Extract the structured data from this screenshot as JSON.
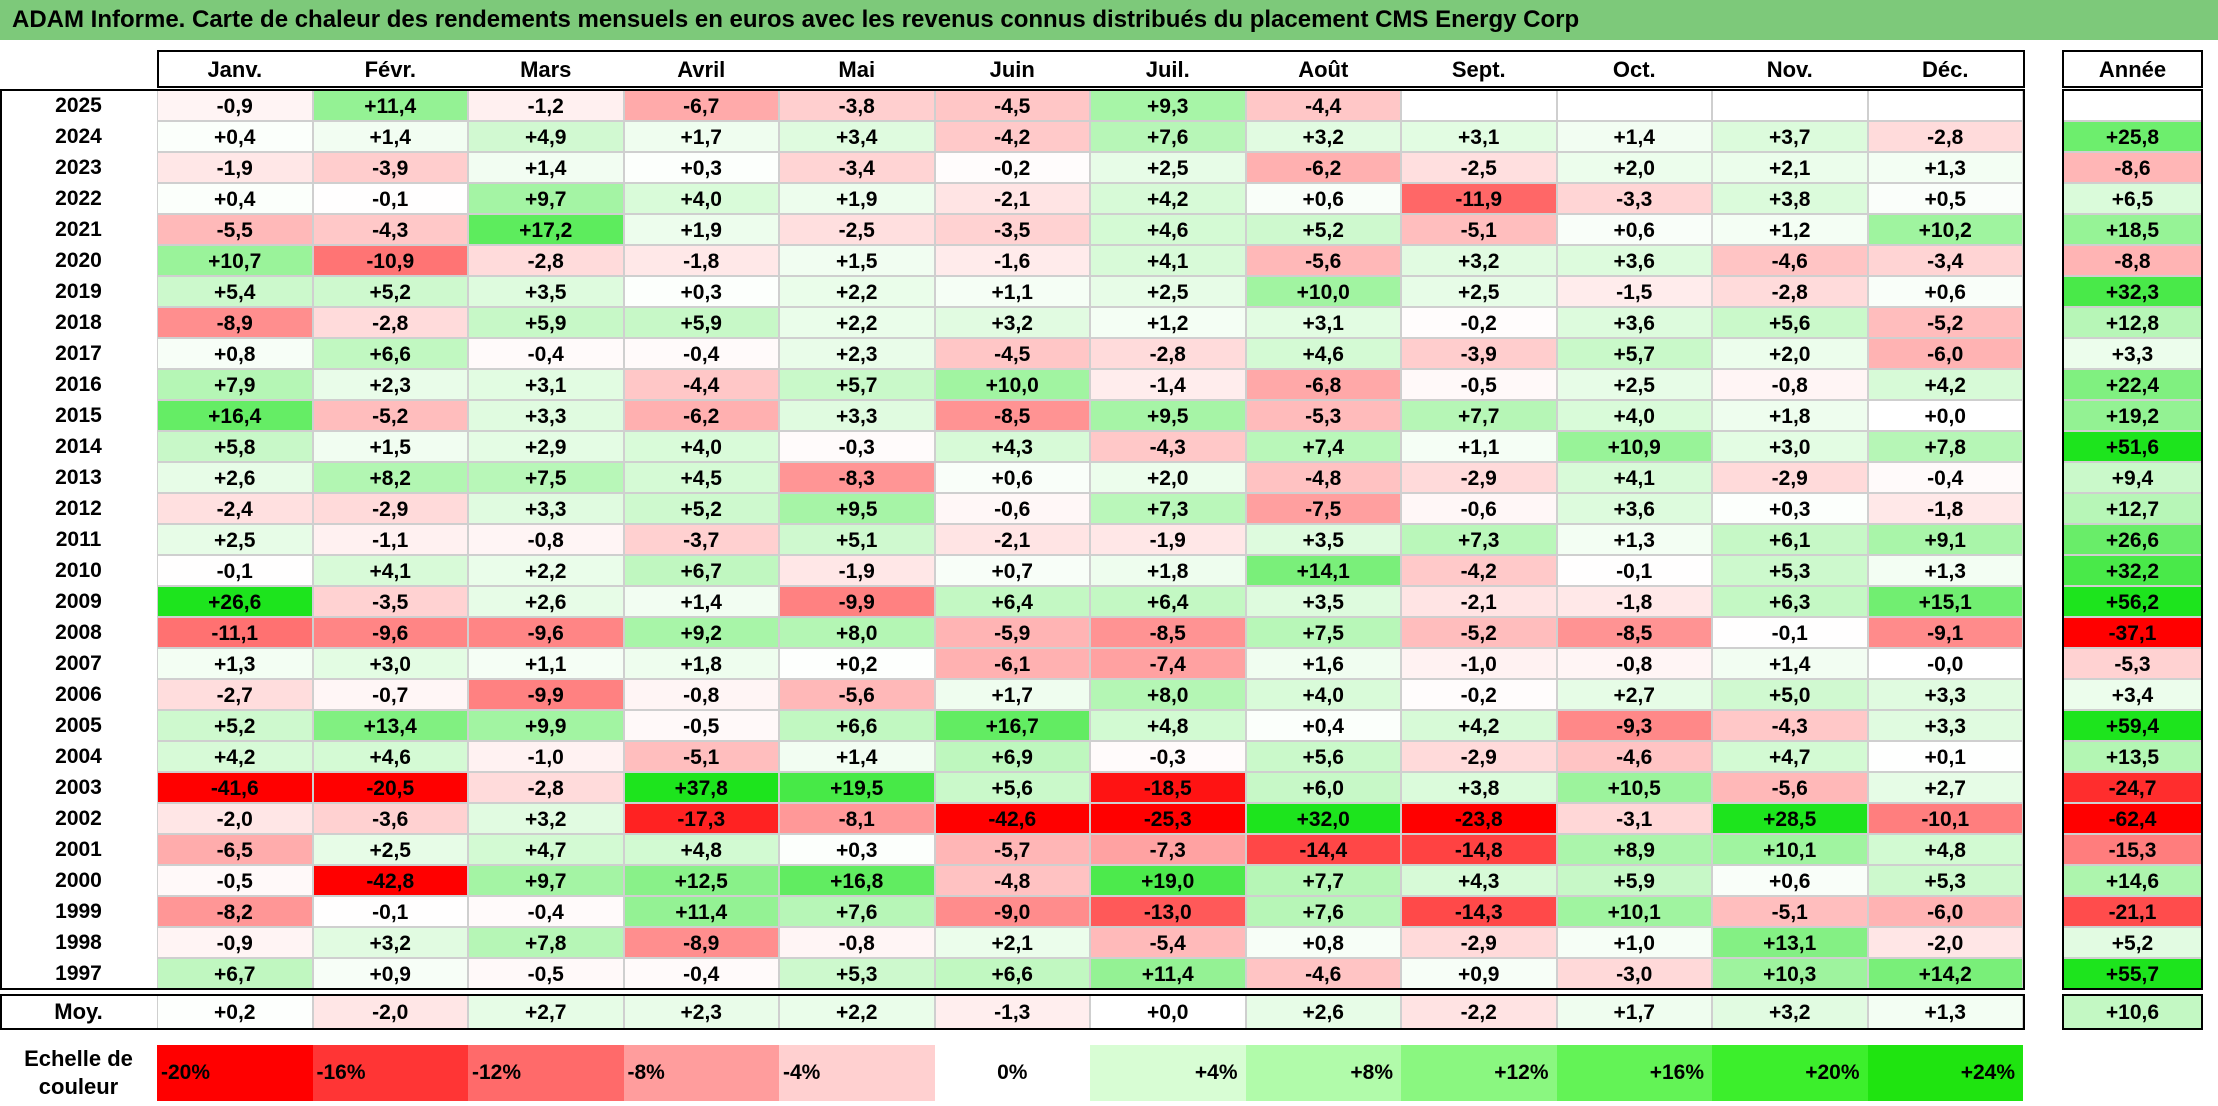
{
  "title": "ADAM Informe. Carte de chaleur des rendements mensuels en euros avec les revenus connus distribués du placement CMS Energy Corp",
  "chart_data": {
    "type": "heatmap",
    "title": "ADAM Informe. Carte de chaleur des rendements mensuels en euros avec les revenus connus distribués du placement CMS Energy Corp",
    "columns": [
      "Janv.",
      "Févr.",
      "Mars",
      "Avril",
      "Mai",
      "Juin",
      "Juil.",
      "Août",
      "Sept.",
      "Oct.",
      "Nov.",
      "Déc."
    ],
    "year_column": "Année",
    "rows": [
      {
        "year": "2025",
        "values": [
          "-0,9",
          "+11,4",
          "-1,2",
          "-6,7",
          "-3,8",
          "-4,5",
          "+9,3",
          "-4,4",
          "",
          "",
          "",
          ""
        ],
        "annual": ""
      },
      {
        "year": "2024",
        "values": [
          "+0,4",
          "+1,4",
          "+4,9",
          "+1,7",
          "+3,4",
          "-4,2",
          "+7,6",
          "+3,2",
          "+3,1",
          "+1,4",
          "+3,7",
          "-2,8"
        ],
        "annual": "+25,8"
      },
      {
        "year": "2023",
        "values": [
          "-1,9",
          "-3,9",
          "+1,4",
          "+0,3",
          "-3,4",
          "-0,2",
          "+2,5",
          "-6,2",
          "-2,5",
          "+2,0",
          "+2,1",
          "+1,3"
        ],
        "annual": "-8,6"
      },
      {
        "year": "2022",
        "values": [
          "+0,4",
          "-0,1",
          "+9,7",
          "+4,0",
          "+1,9",
          "-2,1",
          "+4,2",
          "+0,6",
          "-11,9",
          "-3,3",
          "+3,8",
          "+0,5"
        ],
        "annual": "+6,5"
      },
      {
        "year": "2021",
        "values": [
          "-5,5",
          "-4,3",
          "+17,2",
          "+1,9",
          "-2,5",
          "-3,5",
          "+4,6",
          "+5,2",
          "-5,1",
          "+0,6",
          "+1,2",
          "+10,2"
        ],
        "annual": "+18,5"
      },
      {
        "year": "2020",
        "values": [
          "+10,7",
          "-10,9",
          "-2,8",
          "-1,8",
          "+1,5",
          "-1,6",
          "+4,1",
          "-5,6",
          "+3,2",
          "+3,6",
          "-4,6",
          "-3,4"
        ],
        "annual": "-8,8"
      },
      {
        "year": "2019",
        "values": [
          "+5,4",
          "+5,2",
          "+3,5",
          "+0,3",
          "+2,2",
          "+1,1",
          "+2,5",
          "+10,0",
          "+2,5",
          "-1,5",
          "-2,8",
          "+0,6"
        ],
        "annual": "+32,3"
      },
      {
        "year": "2018",
        "values": [
          "-8,9",
          "-2,8",
          "+5,9",
          "+5,9",
          "+2,2",
          "+3,2",
          "+1,2",
          "+3,1",
          "-0,2",
          "+3,6",
          "+5,6",
          "-5,2"
        ],
        "annual": "+12,8"
      },
      {
        "year": "2017",
        "values": [
          "+0,8",
          "+6,6",
          "-0,4",
          "-0,4",
          "+2,3",
          "-4,5",
          "-2,8",
          "+4,6",
          "-3,9",
          "+5,7",
          "+2,0",
          "-6,0"
        ],
        "annual": "+3,3"
      },
      {
        "year": "2016",
        "values": [
          "+7,9",
          "+2,3",
          "+3,1",
          "-4,4",
          "+5,7",
          "+10,0",
          "-1,4",
          "-6,8",
          "-0,5",
          "+2,5",
          "-0,8",
          "+4,2"
        ],
        "annual": "+22,4"
      },
      {
        "year": "2015",
        "values": [
          "+16,4",
          "-5,2",
          "+3,3",
          "-6,2",
          "+3,3",
          "-8,5",
          "+9,5",
          "-5,3",
          "+7,7",
          "+4,0",
          "+1,8",
          "+0,0"
        ],
        "annual": "+19,2"
      },
      {
        "year": "2014",
        "values": [
          "+5,8",
          "+1,5",
          "+2,9",
          "+4,0",
          "-0,3",
          "+4,3",
          "-4,3",
          "+7,4",
          "+1,1",
          "+10,9",
          "+3,0",
          "+7,8"
        ],
        "annual": "+51,6"
      },
      {
        "year": "2013",
        "values": [
          "+2,6",
          "+8,2",
          "+7,5",
          "+4,5",
          "-8,3",
          "+0,6",
          "+2,0",
          "-4,8",
          "-2,9",
          "+4,1",
          "-2,9",
          "-0,4"
        ],
        "annual": "+9,4"
      },
      {
        "year": "2012",
        "values": [
          "-2,4",
          "-2,9",
          "+3,3",
          "+5,2",
          "+9,5",
          "-0,6",
          "+7,3",
          "-7,5",
          "-0,6",
          "+3,6",
          "+0,3",
          "-1,8"
        ],
        "annual": "+12,7"
      },
      {
        "year": "2011",
        "values": [
          "+2,5",
          "-1,1",
          "-0,8",
          "-3,7",
          "+5,1",
          "-2,1",
          "-1,9",
          "+3,5",
          "+7,3",
          "+1,3",
          "+6,1",
          "+9,1"
        ],
        "annual": "+26,6"
      },
      {
        "year": "2010",
        "values": [
          "-0,1",
          "+4,1",
          "+2,2",
          "+6,7",
          "-1,9",
          "+0,7",
          "+1,8",
          "+14,1",
          "-4,2",
          "-0,1",
          "+5,3",
          "+1,3"
        ],
        "annual": "+32,2"
      },
      {
        "year": "2009",
        "values": [
          "+26,6",
          "-3,5",
          "+2,6",
          "+1,4",
          "-9,9",
          "+6,4",
          "+6,4",
          "+3,5",
          "-2,1",
          "-1,8",
          "+6,3",
          "+15,1"
        ],
        "annual": "+56,2"
      },
      {
        "year": "2008",
        "values": [
          "-11,1",
          "-9,6",
          "-9,6",
          "+9,2",
          "+8,0",
          "-5,9",
          "-8,5",
          "+7,5",
          "-5,2",
          "-8,5",
          "-0,1",
          "-9,1"
        ],
        "annual": "-37,1"
      },
      {
        "year": "2007",
        "values": [
          "+1,3",
          "+3,0",
          "+1,1",
          "+1,8",
          "+0,2",
          "-6,1",
          "-7,4",
          "+1,6",
          "-1,0",
          "-0,8",
          "+1,4",
          "-0,0"
        ],
        "annual": "-5,3"
      },
      {
        "year": "2006",
        "values": [
          "-2,7",
          "-0,7",
          "-9,9",
          "-0,8",
          "-5,6",
          "+1,7",
          "+8,0",
          "+4,0",
          "-0,2",
          "+2,7",
          "+5,0",
          "+3,3"
        ],
        "annual": "+3,4"
      },
      {
        "year": "2005",
        "values": [
          "+5,2",
          "+13,4",
          "+9,9",
          "-0,5",
          "+6,6",
          "+16,7",
          "+4,8",
          "+0,4",
          "+4,2",
          "-9,3",
          "-4,3",
          "+3,3"
        ],
        "annual": "+59,4"
      },
      {
        "year": "2004",
        "values": [
          "+4,2",
          "+4,6",
          "-1,0",
          "-5,1",
          "+1,4",
          "+6,9",
          "-0,3",
          "+5,6",
          "-2,9",
          "-4,6",
          "+4,7",
          "+0,1"
        ],
        "annual": "+13,5"
      },
      {
        "year": "2003",
        "values": [
          "-41,6",
          "-20,5",
          "-2,8",
          "+37,8",
          "+19,5",
          "+5,6",
          "-18,5",
          "+6,0",
          "+3,8",
          "+10,5",
          "-5,6",
          "+2,7"
        ],
        "annual": "-24,7"
      },
      {
        "year": "2002",
        "values": [
          "-2,0",
          "-3,6",
          "+3,2",
          "-17,3",
          "-8,1",
          "-42,6",
          "-25,3",
          "+32,0",
          "-23,8",
          "-3,1",
          "+28,5",
          "-10,1"
        ],
        "annual": "-62,4"
      },
      {
        "year": "2001",
        "values": [
          "-6,5",
          "+2,5",
          "+4,7",
          "+4,8",
          "+0,3",
          "-5,7",
          "-7,3",
          "-14,4",
          "-14,8",
          "+8,9",
          "+10,1",
          "+4,8"
        ],
        "annual": "-15,3"
      },
      {
        "year": "2000",
        "values": [
          "-0,5",
          "-42,8",
          "+9,7",
          "+12,5",
          "+16,8",
          "-4,8",
          "+19,0",
          "+7,7",
          "+4,3",
          "+5,9",
          "+0,6",
          "+5,3"
        ],
        "annual": "+14,6"
      },
      {
        "year": "1999",
        "values": [
          "-8,2",
          "-0,1",
          "-0,4",
          "+11,4",
          "+7,6",
          "-9,0",
          "-13,0",
          "+7,6",
          "-14,3",
          "+10,1",
          "-5,1",
          "-6,0"
        ],
        "annual": "-21,1"
      },
      {
        "year": "1998",
        "values": [
          "-0,9",
          "+3,2",
          "+7,8",
          "-8,9",
          "-0,8",
          "+2,1",
          "-5,4",
          "+0,8",
          "-2,9",
          "+1,0",
          "+13,1",
          "-2,0"
        ],
        "annual": "+5,2"
      },
      {
        "year": "1997",
        "values": [
          "+6,7",
          "+0,9",
          "-0,5",
          "-0,4",
          "+5,3",
          "+6,6",
          "+11,4",
          "-4,6",
          "+0,9",
          "-3,0",
          "+10,3",
          "+14,2"
        ],
        "annual": "+55,7"
      }
    ],
    "average": {
      "label": "Moy.",
      "values": [
        "+0,2",
        "-2,0",
        "+2,7",
        "+2,3",
        "+2,2",
        "-1,3",
        "+0,0",
        "+2,6",
        "-2,2",
        "+1,7",
        "+3,2",
        "+1,3"
      ],
      "annual": "+10,6"
    },
    "legend": {
      "label": "Echelle de couleur",
      "stops": [
        "-20%",
        "-16%",
        "-12%",
        "-8%",
        "-4%",
        "0%",
        "+4%",
        "+8%",
        "+12%",
        "+16%",
        "+20%",
        "+24%"
      ],
      "colors": [
        "#ff0000",
        "#ff3535",
        "#ff6a6a",
        "#ff9d9d",
        "#ffd0d0",
        "#ffffff",
        "#d8fdd4",
        "#b1fbaa",
        "#8af780",
        "#63f356",
        "#3cef2c",
        "#1fe410"
      ]
    }
  }
}
